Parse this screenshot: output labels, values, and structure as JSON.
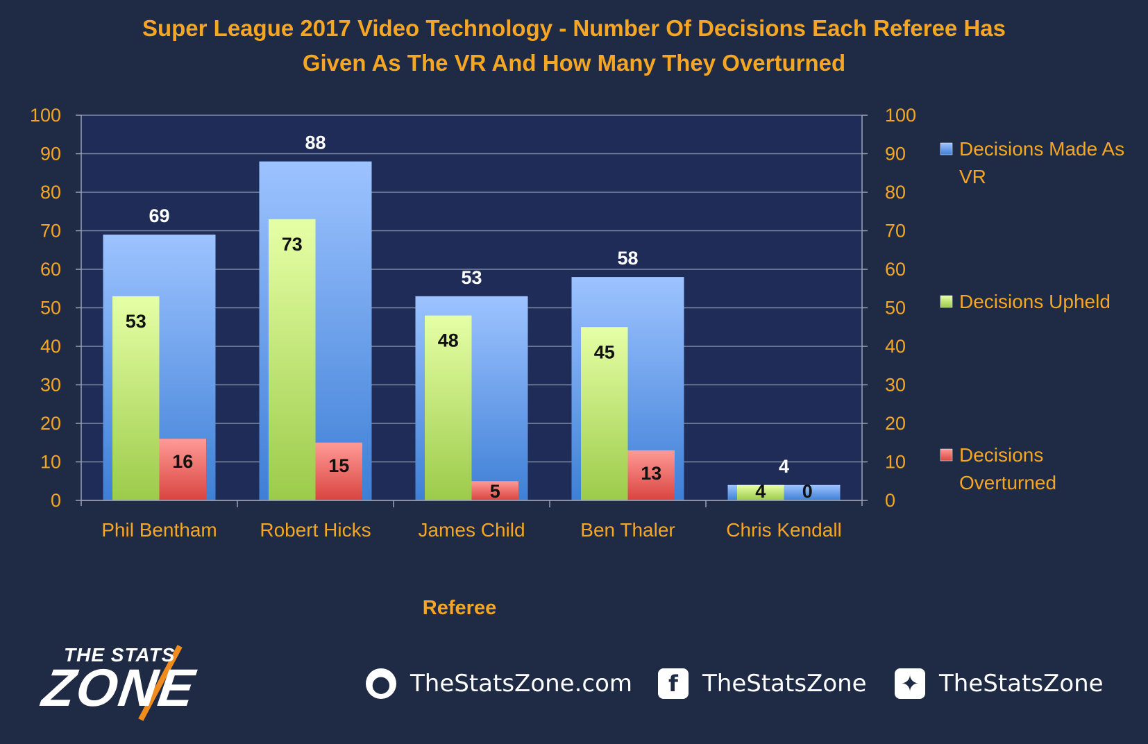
{
  "chart_data": {
    "type": "bar",
    "title": "Super League 2017 Video Technology - Number Of Decisions Each Referee Has Given As The VR And How Many They Overturned",
    "title_lines": [
      "Super League 2017 Video Technology - Number Of Decisions Each Referee Has",
      "Given As The VR And How Many They Overturned"
    ],
    "xlabel": "Referee",
    "ylabel": "",
    "ylim": [
      0,
      100
    ],
    "yticks": [
      0,
      10,
      20,
      30,
      40,
      50,
      60,
      70,
      80,
      90,
      100
    ],
    "secondary_ylim": [
      0,
      100
    ],
    "grid": true,
    "legend_position": "right",
    "categories": [
      "Phil Bentham",
      "Robert Hicks",
      "James Child",
      "Ben Thaler",
      "Chris Kendall"
    ],
    "series": [
      {
        "name": "Decisions Made As VR",
        "legend_lines": [
          "Decisions Made As",
          "VR"
        ],
        "values": [
          69,
          88,
          53,
          58,
          4
        ],
        "color": "#5b9bd5"
      },
      {
        "name": "Decisions Upheld",
        "legend_lines": [
          "Decisions Upheld"
        ],
        "values": [
          53,
          73,
          48,
          45,
          4
        ],
        "color": "#a9d461"
      },
      {
        "name": "Decisions Overturned",
        "legend_lines": [
          "Decisions",
          "Overturned"
        ],
        "values": [
          16,
          15,
          5,
          13,
          0
        ],
        "color": "#e2514d"
      }
    ],
    "colors": {
      "background": "#1f2a44",
      "plot_background": "#1e2c57",
      "text_accent": "#f5a623",
      "gridline": "#7f8aa6"
    }
  },
  "footer": {
    "brand_line1": "THE STATS",
    "brand_line2": "ZONE",
    "website": "TheStatsZone.com",
    "facebook": "TheStatsZone",
    "twitter": "TheStatsZone",
    "icons": {
      "website": "globe-icon",
      "facebook": "facebook-icon",
      "twitter": "twitter-icon"
    }
  }
}
